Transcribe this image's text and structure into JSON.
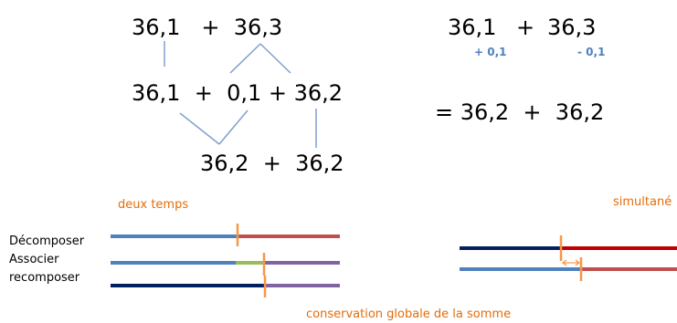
{
  "left_diagram": {
    "line1": "36,1   +  36,3",
    "line2": "36,1  +  0,1 + 36,2",
    "line3": "36,2  +  36,2"
  },
  "right_diagram": {
    "left_term": "36,1",
    "plus": "+",
    "right_term": "36,3",
    "adj_left": "+ 0,1",
    "adj_right": "- 0,1",
    "result": "= 36,2  +  36,2"
  },
  "labels": {
    "deux_temps": "deux temps",
    "simultane": "simultané",
    "decomposer": "Décomposer",
    "associer": "Associer",
    "recomposer": "recomposer",
    "conservation": "conservation globale de la somme"
  },
  "colors": {
    "blue": "#4f81bd",
    "red": "#c0504d",
    "green": "#9bbb59",
    "purple": "#8064a2",
    "navy": "#002060",
    "dark_red": "#c00000",
    "orange": "#f79646",
    "link": "#7f9fcf"
  }
}
